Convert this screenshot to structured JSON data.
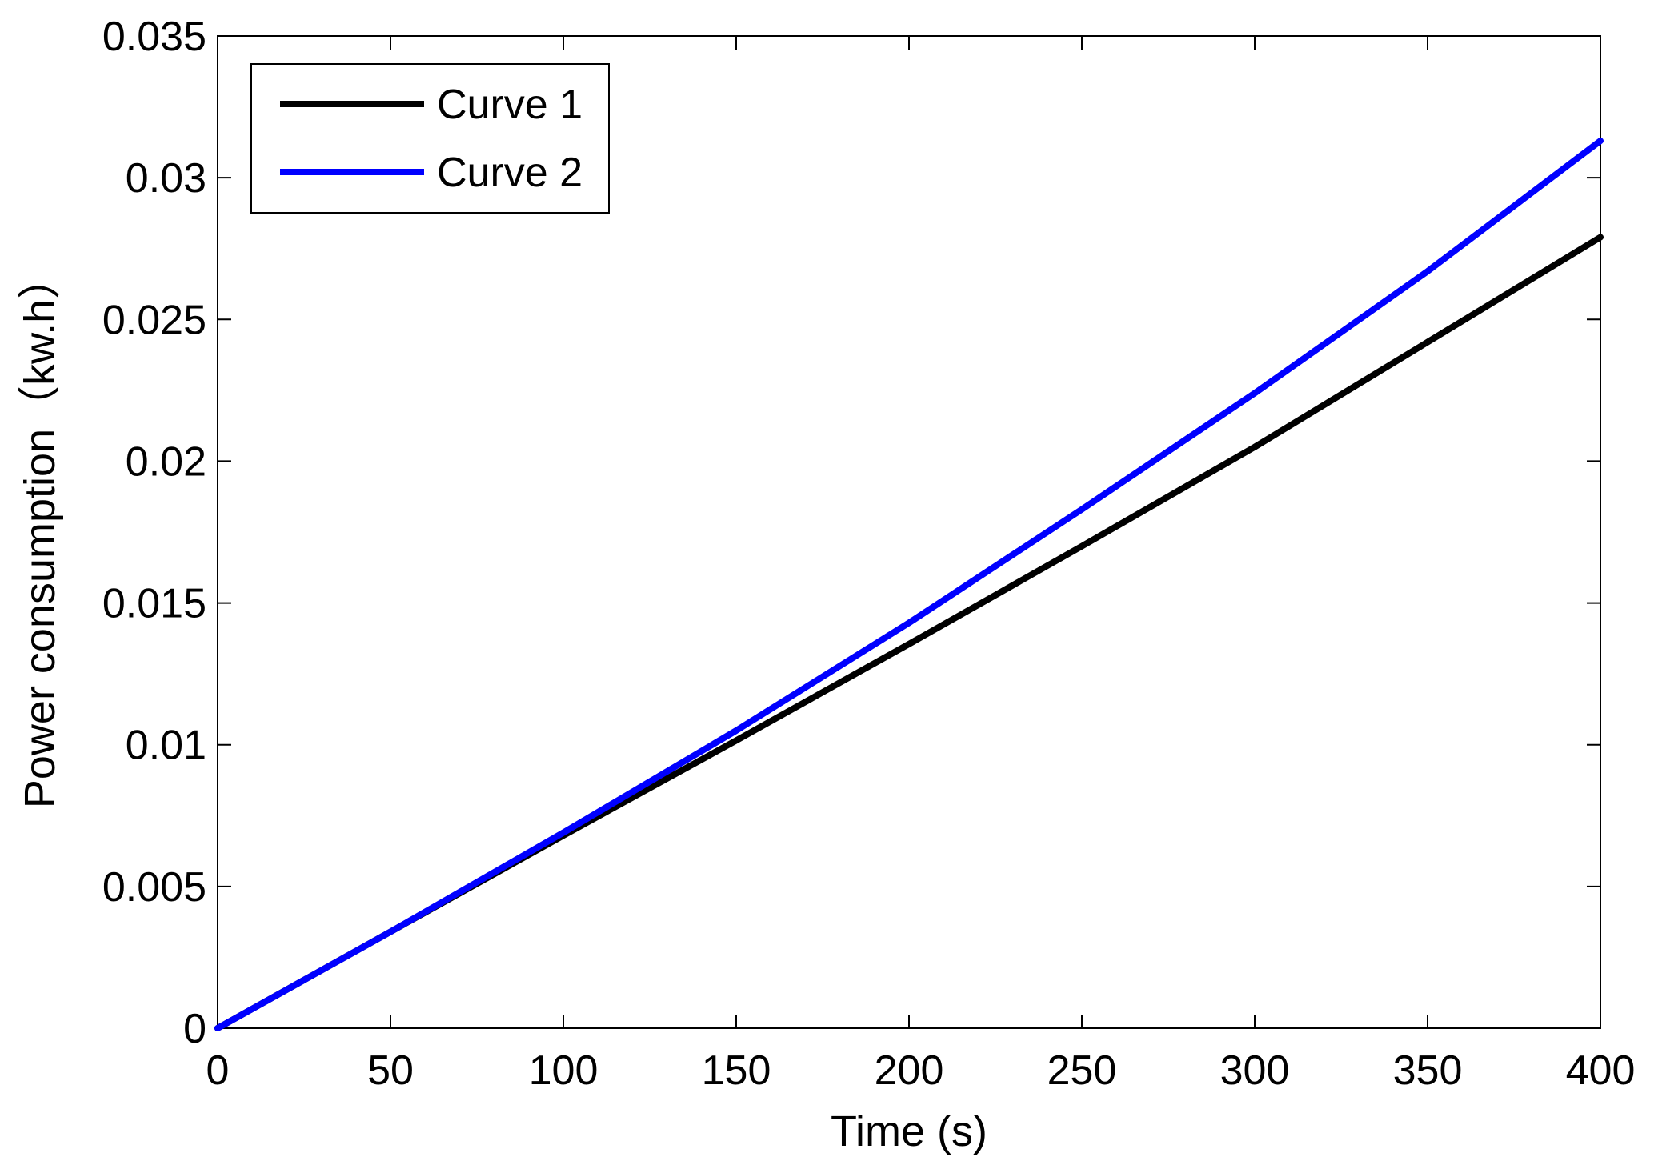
{
  "chart_data": {
    "type": "line",
    "title": "",
    "xlabel": "Time (s)",
    "ylabel": "Power consumption（kw.h）",
    "xlim": [
      0,
      400
    ],
    "ylim": [
      0,
      0.035
    ],
    "xticks": [
      0,
      50,
      100,
      150,
      200,
      250,
      300,
      350,
      400
    ],
    "xtick_labels": [
      "0",
      "50",
      "100",
      "150",
      "200",
      "250",
      "300",
      "350",
      "400"
    ],
    "yticks": [
      0,
      0.005,
      0.01,
      0.015,
      0.02,
      0.025,
      0.03,
      0.035
    ],
    "ytick_labels": [
      "0",
      "0.005",
      "0.01",
      "0.015",
      "0.02",
      "0.025",
      "0.03",
      "0.035"
    ],
    "grid": false,
    "legend_position": "top-left",
    "series": [
      {
        "name": "Curve 1",
        "color": "#000000",
        "x": [
          0,
          50,
          100,
          150,
          200,
          250,
          300,
          350,
          400
        ],
        "y": [
          0,
          0.0034,
          0.0068,
          0.01015,
          0.01355,
          0.017,
          0.0205,
          0.0242,
          0.0279
        ]
      },
      {
        "name": "Curve 2",
        "color": "#0000ff",
        "x": [
          0,
          50,
          100,
          150,
          200,
          250,
          300,
          350,
          400
        ],
        "y": [
          0,
          0.0034,
          0.0069,
          0.0105,
          0.0143,
          0.0183,
          0.0224,
          0.0267,
          0.0313
        ]
      }
    ]
  }
}
